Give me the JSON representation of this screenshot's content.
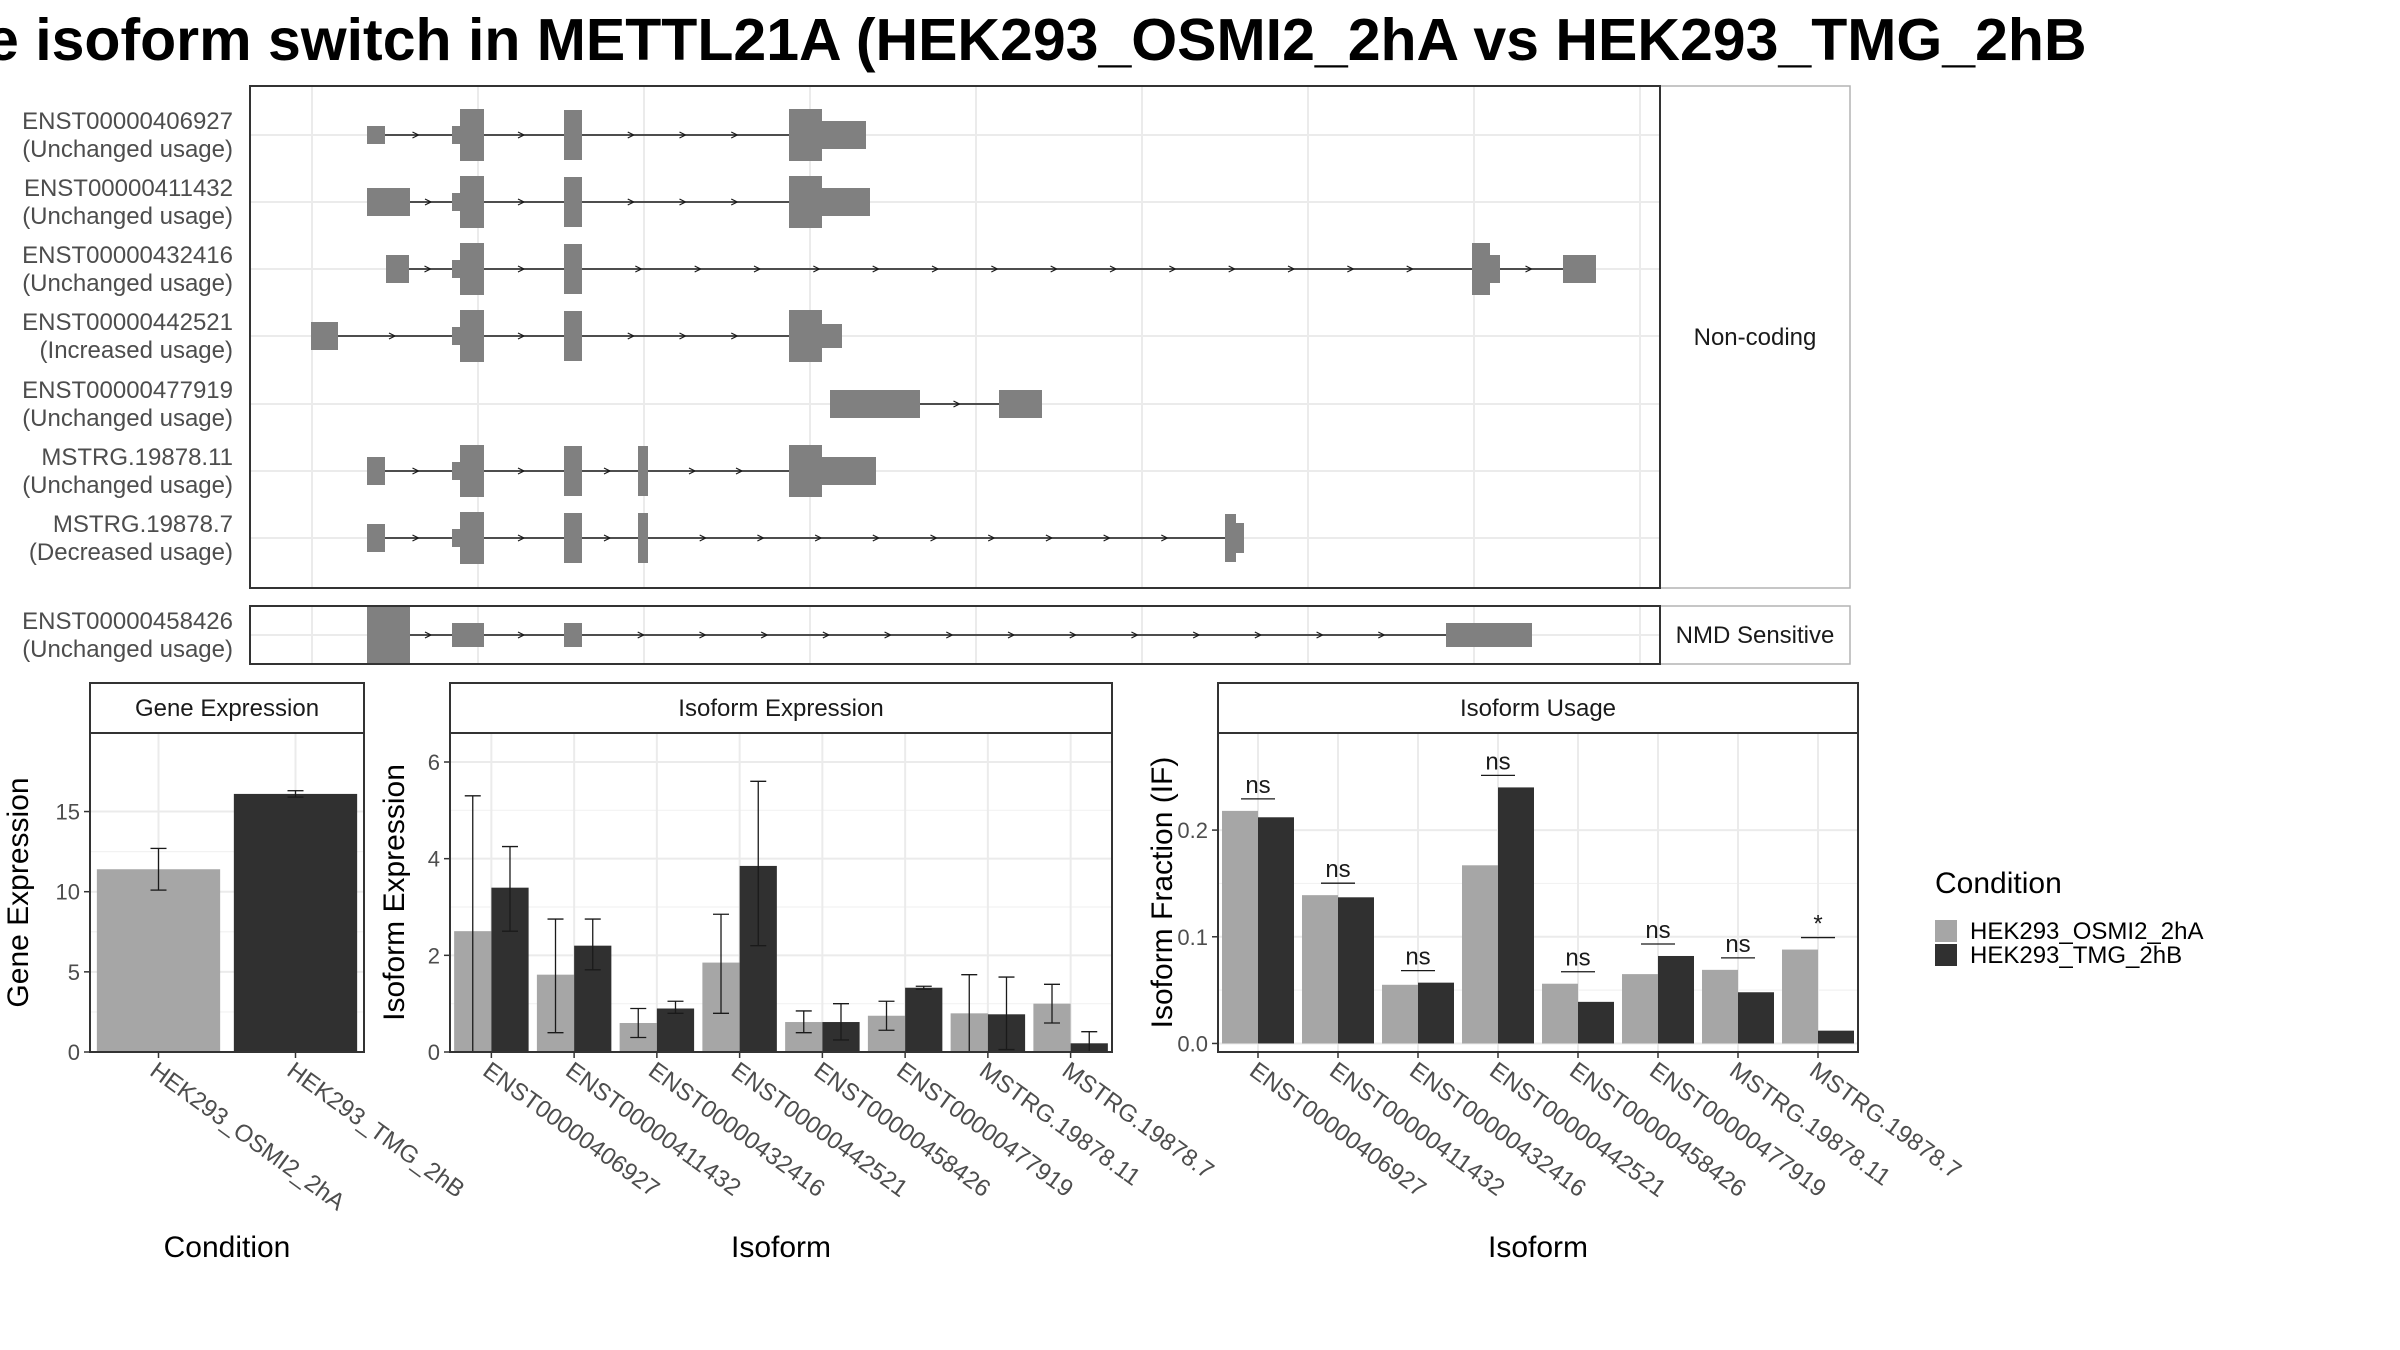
{
  "title": "e isoform switch in METTL21A (HEK293_OSMI2_2hA vs HEK293_TMG_2hB",
  "colors": {
    "osmi": "#a6a6a6",
    "tmg": "#303030",
    "exon": "#808080",
    "grid": "#ebebeb",
    "border": "#333333",
    "strip_border": "#b3b3b3"
  },
  "structure": {
    "groups": [
      {
        "label": "Non-coding",
        "isoforms": [
          {
            "id": "ENST00000406927",
            "usage": "(Unchanged usage)"
          },
          {
            "id": "ENST00000411432",
            "usage": "(Unchanged usage)"
          },
          {
            "id": "ENST00000432416",
            "usage": "(Unchanged usage)"
          },
          {
            "id": "ENST00000442521",
            "usage": "(Increased usage)"
          },
          {
            "id": "ENST00000477919",
            "usage": "(Unchanged usage)"
          },
          {
            "id": "MSTRG.19878.11",
            "usage": "(Unchanged usage)"
          },
          {
            "id": "MSTRG.19878.7",
            "usage": "(Decreased usage)"
          }
        ]
      },
      {
        "label": "NMD Sensitive",
        "isoforms": [
          {
            "id": "ENST00000458426",
            "usage": "(Unchanged usage)"
          }
        ]
      }
    ]
  },
  "legend": {
    "title": "Condition",
    "items": [
      "HEK293_OSMI2_2hA",
      "HEK293_TMG_2hB"
    ]
  },
  "chart_data": [
    {
      "type": "bar",
      "title": "Gene Expression",
      "xlabel": "Condition",
      "ylabel": "Gene Expression",
      "categories": [
        "HEK293_OSMI2_2hA",
        "HEK293_TMG_2hB"
      ],
      "values": [
        11.4,
        16.1
      ],
      "error_low": [
        10.1,
        15.9
      ],
      "error_high": [
        12.7,
        16.3
      ],
      "ylim": [
        0,
        19.9
      ],
      "yticks": [
        0,
        5,
        10,
        15
      ],
      "grid": true
    },
    {
      "type": "bar",
      "title": "Isoform Expression",
      "xlabel": "Isoform",
      "ylabel": "Isoform Expression",
      "categories": [
        "ENST00000406927",
        "ENST00000411432",
        "ENST00000432416",
        "ENST00000442521",
        "ENST00000458426",
        "ENST00000477919",
        "MSTRG.19878.11",
        "MSTRG.19878.7"
      ],
      "series": [
        {
          "name": "HEK293_OSMI2_2hA",
          "values": [
            2.5,
            1.6,
            0.6,
            1.85,
            0.62,
            0.75,
            0.8,
            1.0
          ],
          "error_low": [
            0.0,
            0.4,
            0.3,
            0.8,
            0.4,
            0.45,
            0.0,
            0.6
          ],
          "error_high": [
            5.3,
            2.75,
            0.9,
            2.85,
            0.85,
            1.05,
            1.6,
            1.4
          ]
        },
        {
          "name": "HEK293_TMG_2hB",
          "values": [
            3.4,
            2.2,
            0.9,
            3.85,
            0.62,
            1.33,
            0.78,
            0.18
          ],
          "error_low": [
            2.5,
            1.7,
            0.8,
            2.2,
            0.25,
            1.3,
            0.05,
            0.0
          ],
          "error_high": [
            4.25,
            2.75,
            1.05,
            5.6,
            1.0,
            1.36,
            1.55,
            0.42
          ]
        }
      ],
      "ylim": [
        0,
        6.6
      ],
      "yticks": [
        0,
        2,
        4,
        6
      ],
      "grid": true
    },
    {
      "type": "bar",
      "title": "Isoform Usage",
      "xlabel": "Isoform",
      "ylabel": "Isoform Fraction (IF)",
      "categories": [
        "ENST00000406927",
        "ENST00000411432",
        "ENST00000432416",
        "ENST00000442521",
        "ENST00000458426",
        "ENST00000477919",
        "MSTRG.19878.11",
        "MSTRG.19878.7"
      ],
      "series": [
        {
          "name": "HEK293_OSMI2_2hA",
          "values": [
            0.218,
            0.139,
            0.055,
            0.167,
            0.056,
            0.065,
            0.069,
            0.088
          ]
        },
        {
          "name": "HEK293_TMG_2hB",
          "values": [
            0.212,
            0.137,
            0.057,
            0.24,
            0.039,
            0.082,
            0.048,
            0.012
          ]
        }
      ],
      "significance": [
        "ns",
        "ns",
        "ns",
        "ns",
        "ns",
        "ns",
        "ns",
        "*"
      ],
      "ylim": [
        -0.008,
        0.291
      ],
      "yticks": [
        0.0,
        0.1,
        0.2
      ],
      "ytick_labels": [
        "0.0",
        "0.1",
        "0.2"
      ],
      "grid": true,
      "legend": "right"
    }
  ]
}
